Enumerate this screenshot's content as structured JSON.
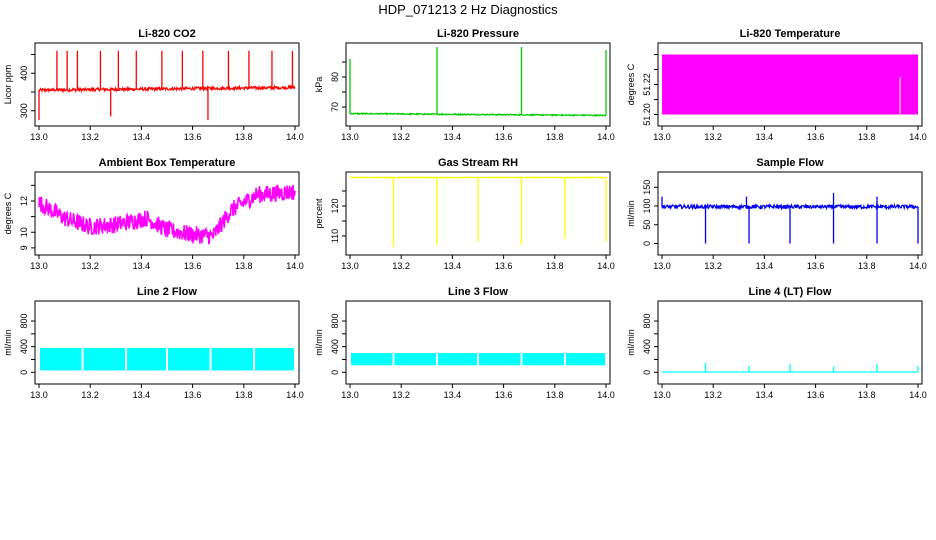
{
  "figure_title": "HDP_071213  2 Hz Diagnostics",
  "chart_data": [
    {
      "type": "line",
      "title": "Li-820 CO2",
      "ylabel": "Licor ppm",
      "color": "#ff0000",
      "xlim": [
        13.0,
        14.0
      ],
      "ylim": [
        270,
        470
      ],
      "xticks": [
        13.0,
        13.2,
        13.4,
        13.6,
        13.8,
        14.0
      ],
      "xtick_labels": [
        "13.0",
        "13.2",
        "13.4",
        "13.6",
        "13.8",
        "14.0"
      ],
      "yticks": [
        300,
        350,
        400,
        450
      ],
      "ytick_labels": [
        "300",
        "",
        "400",
        ""
      ],
      "series": [
        {
          "name": "CO2",
          "style": "spikes",
          "base": [
            355,
            362
          ],
          "noise": 4,
          "events": [
            [
              13.07,
              460
            ],
            [
              13.11,
              460
            ],
            [
              13.15,
              460
            ],
            [
              13.24,
              460
            ],
            [
              13.31,
              460
            ],
            [
              13.38,
              460
            ],
            [
              13.48,
              460
            ],
            [
              13.56,
              460
            ],
            [
              13.64,
              460
            ],
            [
              13.74,
              460
            ],
            [
              13.82,
              460
            ],
            [
              13.91,
              460
            ],
            [
              13.99,
              460
            ],
            [
              13.0,
              275
            ],
            [
              13.28,
              285
            ],
            [
              13.66,
              275
            ]
          ]
        }
      ]
    },
    {
      "type": "line",
      "title": "Li-820 Pressure",
      "ylabel": "kPa",
      "color": "#00cc00",
      "xlim": [
        13.0,
        14.0
      ],
      "ylim": [
        65,
        90
      ],
      "xticks": [
        13.0,
        13.2,
        13.4,
        13.6,
        13.8,
        14.0
      ],
      "xtick_labels": [
        "13.0",
        "13.2",
        "13.4",
        "13.6",
        "13.8",
        "14.0"
      ],
      "yticks": [
        70,
        75,
        80,
        85
      ],
      "ytick_labels": [
        "70",
        "",
        "80",
        ""
      ],
      "series": [
        {
          "name": "Pressure",
          "style": "spikes",
          "base": [
            67.8,
            67.2
          ],
          "noise": 0.2,
          "events": [
            [
              13.0,
              86
            ],
            [
              13.34,
              90
            ],
            [
              13.67,
              90
            ],
            [
              14.0,
              89
            ]
          ]
        }
      ]
    },
    {
      "type": "line",
      "title": "Li-820 Temperature",
      "ylabel": "degrees C",
      "color": "#ff00ff",
      "xlim": [
        13.0,
        14.0
      ],
      "ylim": [
        51.195,
        51.245
      ],
      "xticks": [
        13.0,
        13.2,
        13.4,
        13.6,
        13.8,
        14.0
      ],
      "xtick_labels": [
        "13.0",
        "13.2",
        "13.4",
        "13.6",
        "13.8",
        "14.0"
      ],
      "yticks": [
        51.2,
        51.21,
        51.22,
        51.23,
        51.24
      ],
      "ytick_labels": [
        "51.20",
        "",
        "51.22",
        "",
        ""
      ],
      "series": [
        {
          "name": "Temperature",
          "style": "band",
          "base": [
            51.2,
            51.2
          ],
          "upper": [
            51.24,
            51.24
          ],
          "events": [
            [
              13.93,
              51.225
            ]
          ]
        }
      ]
    },
    {
      "type": "line",
      "title": "Ambient Box Temperature",
      "ylabel": "degrees C",
      "color": "#ff00ff",
      "xlim": [
        13.0,
        14.0
      ],
      "ylim": [
        8.8,
        13.6
      ],
      "xticks": [
        13.0,
        13.2,
        13.4,
        13.6,
        13.8,
        14.0
      ],
      "xtick_labels": [
        "13.0",
        "13.2",
        "13.4",
        "13.6",
        "13.8",
        "14.0"
      ],
      "yticks": [
        9,
        10,
        11,
        12,
        13
      ],
      "ytick_labels": [
        "9",
        "10",
        "",
        "12",
        ""
      ],
      "series": [
        {
          "name": "Box temperature",
          "style": "noisy",
          "noise": 0.55,
          "x": [
            13.0,
            13.1,
            13.2,
            13.3,
            13.42,
            13.5,
            13.6,
            13.68,
            13.75,
            13.85,
            14.0
          ],
          "y": [
            11.9,
            10.9,
            10.35,
            10.5,
            10.9,
            10.15,
            9.85,
            9.75,
            11.4,
            12.4,
            12.6
          ]
        }
      ]
    },
    {
      "type": "line",
      "title": "Gas Stream RH",
      "ylabel": "percent",
      "color": "#ffff00",
      "xlim": [
        13.0,
        14.0
      ],
      "ylim": [
        105,
        130
      ],
      "xticks": [
        13.0,
        13.2,
        13.4,
        13.6,
        13.8,
        14.0
      ],
      "xtick_labels": [
        "13.0",
        "13.2",
        "13.4",
        "13.6",
        "13.8",
        "14.0"
      ],
      "yticks": [
        110,
        115,
        120,
        125
      ],
      "ytick_labels": [
        "110",
        "",
        "120",
        ""
      ],
      "series": [
        {
          "name": "RH",
          "style": "spikes",
          "base": [
            129.5,
            129.5
          ],
          "noise": 0.15,
          "events": [
            [
              13.17,
              106.5
            ],
            [
              13.34,
              107
            ],
            [
              13.5,
              108
            ],
            [
              13.67,
              107
            ],
            [
              13.84,
              109
            ],
            [
              14.0,
              108
            ]
          ]
        }
      ]
    },
    {
      "type": "line",
      "title": "Sample Flow",
      "ylabel": "ml/min",
      "color": "#0000ee",
      "xlim": [
        13.0,
        14.0
      ],
      "ylim": [
        -20,
        180
      ],
      "xticks": [
        13.0,
        13.2,
        13.4,
        13.6,
        13.8,
        14.0
      ],
      "xtick_labels": [
        "13.0",
        "13.2",
        "13.4",
        "13.6",
        "13.8",
        "14.0"
      ],
      "yticks": [
        0,
        50,
        100,
        150
      ],
      "ytick_labels": [
        "0",
        "50",
        "100",
        "150"
      ],
      "series": [
        {
          "name": "Sample flow",
          "style": "spikes",
          "base": [
            98,
            98
          ],
          "noise": 5,
          "events": [
            [
              13.0,
              125
            ],
            [
              13.17,
              0
            ],
            [
              13.34,
              0
            ],
            [
              13.5,
              0
            ],
            [
              13.67,
              0
            ],
            [
              13.84,
              0
            ],
            [
              14.0,
              0
            ],
            [
              13.33,
              125
            ],
            [
              13.67,
              135
            ],
            [
              13.84,
              125
            ]
          ]
        }
      ]
    },
    {
      "type": "line",
      "title": "Line 2 Flow",
      "ylabel": "ml/min",
      "color": "#00ffff",
      "xlim": [
        13.0,
        14.0
      ],
      "ylim": [
        -120,
        1050
      ],
      "xticks": [
        13.0,
        13.2,
        13.4,
        13.6,
        13.8,
        14.0
      ],
      "xtick_labels": [
        "13.0",
        "13.2",
        "13.4",
        "13.6",
        "13.8",
        "14.0"
      ],
      "yticks": [
        0,
        200,
        400,
        600,
        800
      ],
      "ytick_labels": [
        "0",
        "",
        "400",
        "",
        "800"
      ],
      "series": [
        {
          "name": "Line 2 flow",
          "style": "segments",
          "low": 30,
          "high": 380,
          "breaks": [
            13.0,
            13.17,
            13.34,
            13.5,
            13.67,
            13.84,
            14.0
          ]
        }
      ]
    },
    {
      "type": "line",
      "title": "Line 3 Flow",
      "ylabel": "ml/min",
      "color": "#00ffff",
      "xlim": [
        13.0,
        14.0
      ],
      "ylim": [
        -120,
        1050
      ],
      "xticks": [
        13.0,
        13.2,
        13.4,
        13.6,
        13.8,
        14.0
      ],
      "xtick_labels": [
        "13.0",
        "13.2",
        "13.4",
        "13.6",
        "13.8",
        "14.0"
      ],
      "yticks": [
        0,
        200,
        400,
        600,
        800
      ],
      "ytick_labels": [
        "0",
        "",
        "400",
        "",
        "800"
      ],
      "series": [
        {
          "name": "Line 3 flow",
          "style": "segments",
          "low": 110,
          "high": 300,
          "breaks": [
            13.0,
            13.17,
            13.34,
            13.5,
            13.67,
            13.84,
            14.0
          ]
        }
      ]
    },
    {
      "type": "line",
      "title": "Line 4 (LT) Flow",
      "ylabel": "ml/min",
      "color": "#00ffff",
      "xlim": [
        13.0,
        14.0
      ],
      "ylim": [
        -120,
        1050
      ],
      "xticks": [
        13.0,
        13.2,
        13.4,
        13.6,
        13.8,
        14.0
      ],
      "xtick_labels": [
        "13.0",
        "13.2",
        "13.4",
        "13.6",
        "13.8",
        "14.0"
      ],
      "yticks": [
        0,
        200,
        400,
        600,
        800
      ],
      "ytick_labels": [
        "0",
        "",
        "400",
        "",
        "800"
      ],
      "series": [
        {
          "name": "Line 4 flow",
          "style": "spikes",
          "base": [
            5,
            5
          ],
          "noise": 0,
          "events": [
            [
              13.17,
              150
            ],
            [
              13.34,
              100
            ],
            [
              13.5,
              130
            ],
            [
              13.67,
              90
            ],
            [
              13.84,
              130
            ],
            [
              14.0,
              100
            ]
          ]
        }
      ]
    }
  ]
}
